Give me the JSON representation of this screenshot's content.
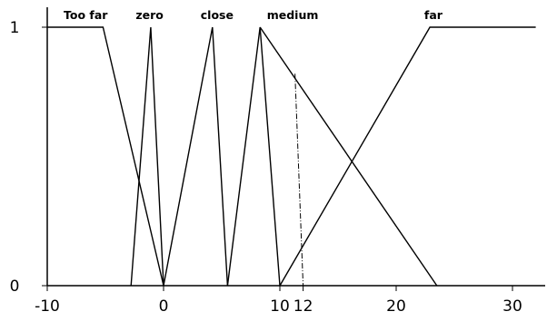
{
  "chart_data": {
    "type": "line",
    "title": "",
    "xlabel": "",
    "ylabel": "",
    "xlim": [
      -10,
      33
    ],
    "ylim": [
      0,
      1
    ],
    "x_ticks": [
      {
        "value": -10,
        "label": "-10"
      },
      {
        "value": 0,
        "label": "0"
      },
      {
        "value": 10,
        "label": "10"
      },
      {
        "value": 12,
        "label": "12"
      },
      {
        "value": 20,
        "label": "20"
      },
      {
        "value": 30,
        "label": "30"
      }
    ],
    "y_ticks": [
      {
        "value": 0,
        "label": "0"
      },
      {
        "value": 1,
        "label": "1"
      }
    ],
    "grid": false,
    "legend": "none",
    "series": [
      {
        "name": "Too far",
        "label_x": -6.7,
        "x": [
          -10,
          -5.2,
          0
        ],
        "y": [
          1,
          1,
          0
        ]
      },
      {
        "name": "zero",
        "label_x": -1.2,
        "x": [
          -2.8,
          -1.1,
          0
        ],
        "y": [
          0,
          1,
          0
        ]
      },
      {
        "name": "close",
        "label_x": 4.6,
        "x": [
          0,
          4.2,
          5.5
        ],
        "y": [
          0,
          1,
          0
        ]
      },
      {
        "name": "medium",
        "label_x": 11.1,
        "x": [
          5.5,
          8.3,
          10
        ],
        "y": [
          0,
          1,
          0
        ]
      },
      {
        "name": "far",
        "label_x": 23.2,
        "x": [
          10,
          22.9,
          32
        ],
        "y": [
          0,
          1,
          1
        ]
      },
      {
        "name": "",
        "x": [
          8.3,
          23.5
        ],
        "y": [
          1,
          0
        ]
      }
    ],
    "marker_line": {
      "x": [
        11.3,
        12
      ],
      "y": [
        0.82,
        0
      ]
    }
  }
}
